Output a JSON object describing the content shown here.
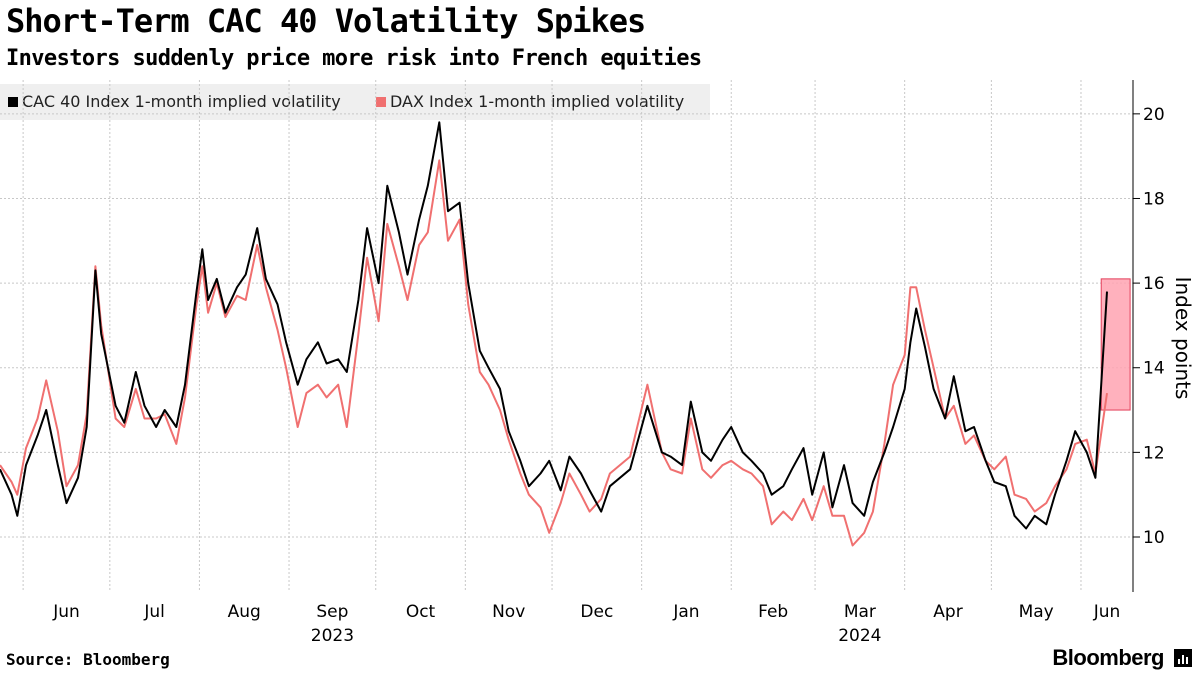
{
  "header": {
    "title": "Short-Term CAC 40 Volatility Spikes",
    "subtitle": "Investors suddenly price more risk into French equities"
  },
  "footer": {
    "source": "Source: Bloomberg",
    "brand": "Bloomberg"
  },
  "colors": {
    "cac": "#000000",
    "dax": "#f07070",
    "highlight": "#ffa3b1",
    "highlight_border": "#e43f5a",
    "grid": "#c8c8c8",
    "legend_bg": "#efefef"
  },
  "chart_data": {
    "type": "line",
    "title": "Short-Term CAC 40 Volatility Spikes",
    "subtitle": "Investors suddenly price more risk into French equities",
    "ylabel": "Index points",
    "ylim": [
      8.7,
      20.8
    ],
    "yticks": [
      10,
      12,
      14,
      16,
      18,
      20
    ],
    "xlim": [
      "2023-05-24",
      "2024-06-19"
    ],
    "month_ticks": [
      {
        "label": "Jun",
        "date": "2023-06-01"
      },
      {
        "label": "Jul",
        "date": "2023-07-01"
      },
      {
        "label": "Aug",
        "date": "2023-08-01"
      },
      {
        "label": "Sep",
        "date": "2023-09-01"
      },
      {
        "label": "Oct",
        "date": "2023-10-01"
      },
      {
        "label": "Nov",
        "date": "2023-11-01"
      },
      {
        "label": "Dec",
        "date": "2023-12-01"
      },
      {
        "label": "Jan",
        "date": "2024-01-01"
      },
      {
        "label": "Feb",
        "date": "2024-02-01"
      },
      {
        "label": "Mar",
        "date": "2024-03-01"
      },
      {
        "label": "Apr",
        "date": "2024-04-01"
      },
      {
        "label": "May",
        "date": "2024-05-01"
      },
      {
        "label": "Jun",
        "date": "2024-06-01"
      }
    ],
    "year_labels": [
      {
        "label": "2023",
        "date": "2023-09-01"
      },
      {
        "label": "2024",
        "date": "2024-03-01"
      }
    ],
    "grid": true,
    "legend_position": "top-left",
    "highlight": {
      "x_start": "2024-06-08",
      "x_end": "2024-06-18",
      "y_start": 13.0,
      "y_end": 16.1
    },
    "series": [
      {
        "name": "CAC 40 Index 1-month implied volatility",
        "color": "#000000",
        "points": [
          [
            "2023-05-24",
            11.6
          ],
          [
            "2023-05-28",
            11.0
          ],
          [
            "2023-05-30",
            10.5
          ],
          [
            "2023-06-02",
            11.7
          ],
          [
            "2023-06-06",
            12.4
          ],
          [
            "2023-06-09",
            13.0
          ],
          [
            "2023-06-13",
            11.7
          ],
          [
            "2023-06-16",
            10.8
          ],
          [
            "2023-06-20",
            11.4
          ],
          [
            "2023-06-23",
            12.6
          ],
          [
            "2023-06-26",
            16.3
          ],
          [
            "2023-06-28",
            14.8
          ],
          [
            "2023-07-03",
            13.1
          ],
          [
            "2023-07-06",
            12.7
          ],
          [
            "2023-07-10",
            13.9
          ],
          [
            "2023-07-13",
            13.1
          ],
          [
            "2023-07-17",
            12.6
          ],
          [
            "2023-07-20",
            13.0
          ],
          [
            "2023-07-24",
            12.6
          ],
          [
            "2023-07-27",
            13.6
          ],
          [
            "2023-07-31",
            15.8
          ],
          [
            "2023-08-02",
            16.8
          ],
          [
            "2023-08-04",
            15.6
          ],
          [
            "2023-08-07",
            16.1
          ],
          [
            "2023-08-10",
            15.3
          ],
          [
            "2023-08-14",
            15.9
          ],
          [
            "2023-08-17",
            16.2
          ],
          [
            "2023-08-21",
            17.3
          ],
          [
            "2023-08-24",
            16.1
          ],
          [
            "2023-08-28",
            15.5
          ],
          [
            "2023-08-31",
            14.6
          ],
          [
            "2023-09-04",
            13.6
          ],
          [
            "2023-09-07",
            14.2
          ],
          [
            "2023-09-11",
            14.6
          ],
          [
            "2023-09-14",
            14.1
          ],
          [
            "2023-09-18",
            14.2
          ],
          [
            "2023-09-21",
            13.9
          ],
          [
            "2023-09-25",
            15.6
          ],
          [
            "2023-09-28",
            17.3
          ],
          [
            "2023-10-02",
            16.0
          ],
          [
            "2023-10-05",
            18.3
          ],
          [
            "2023-10-09",
            17.2
          ],
          [
            "2023-10-12",
            16.2
          ],
          [
            "2023-10-16",
            17.5
          ],
          [
            "2023-10-19",
            18.3
          ],
          [
            "2023-10-23",
            19.8
          ],
          [
            "2023-10-26",
            17.7
          ],
          [
            "2023-10-30",
            17.9
          ],
          [
            "2023-11-02",
            16.0
          ],
          [
            "2023-11-06",
            14.4
          ],
          [
            "2023-11-09",
            14.0
          ],
          [
            "2023-11-13",
            13.5
          ],
          [
            "2023-11-16",
            12.5
          ],
          [
            "2023-11-20",
            11.8
          ],
          [
            "2023-11-23",
            11.2
          ],
          [
            "2023-11-27",
            11.5
          ],
          [
            "2023-11-30",
            11.8
          ],
          [
            "2023-12-04",
            11.1
          ],
          [
            "2023-12-07",
            11.9
          ],
          [
            "2023-12-11",
            11.5
          ],
          [
            "2023-12-14",
            11.1
          ],
          [
            "2023-12-18",
            10.6
          ],
          [
            "2023-12-21",
            11.2
          ],
          [
            "2023-12-28",
            11.6
          ],
          [
            "2024-01-03",
            13.1
          ],
          [
            "2024-01-08",
            12.0
          ],
          [
            "2024-01-11",
            11.9
          ],
          [
            "2024-01-15",
            11.7
          ],
          [
            "2024-01-18",
            13.2
          ],
          [
            "2024-01-22",
            12.0
          ],
          [
            "2024-01-25",
            11.8
          ],
          [
            "2024-01-29",
            12.3
          ],
          [
            "2024-02-01",
            12.6
          ],
          [
            "2024-02-05",
            12.0
          ],
          [
            "2024-02-08",
            11.8
          ],
          [
            "2024-02-12",
            11.5
          ],
          [
            "2024-02-15",
            11.0
          ],
          [
            "2024-02-19",
            11.2
          ],
          [
            "2024-02-22",
            11.6
          ],
          [
            "2024-02-26",
            12.1
          ],
          [
            "2024-02-29",
            11.0
          ],
          [
            "2024-03-04",
            12.0
          ],
          [
            "2024-03-07",
            10.7
          ],
          [
            "2024-03-11",
            11.7
          ],
          [
            "2024-03-14",
            10.8
          ],
          [
            "2024-03-18",
            10.5
          ],
          [
            "2024-03-21",
            11.3
          ],
          [
            "2024-03-25",
            12.0
          ],
          [
            "2024-03-28",
            12.6
          ],
          [
            "2024-04-01",
            13.5
          ],
          [
            "2024-04-03",
            14.6
          ],
          [
            "2024-04-05",
            15.4
          ],
          [
            "2024-04-08",
            14.5
          ],
          [
            "2024-04-11",
            13.5
          ],
          [
            "2024-04-15",
            12.8
          ],
          [
            "2024-04-18",
            13.8
          ],
          [
            "2024-04-22",
            12.5
          ],
          [
            "2024-04-25",
            12.6
          ],
          [
            "2024-04-29",
            11.8
          ],
          [
            "2024-05-02",
            11.3
          ],
          [
            "2024-05-06",
            11.2
          ],
          [
            "2024-05-09",
            10.5
          ],
          [
            "2024-05-13",
            10.2
          ],
          [
            "2024-05-16",
            10.5
          ],
          [
            "2024-05-20",
            10.3
          ],
          [
            "2024-05-23",
            11.0
          ],
          [
            "2024-05-27",
            11.8
          ],
          [
            "2024-05-30",
            12.5
          ],
          [
            "2024-06-03",
            12.0
          ],
          [
            "2024-06-06",
            11.4
          ],
          [
            "2024-06-10",
            15.8
          ]
        ]
      },
      {
        "name": "DAX Index 1-month implied volatility",
        "color": "#f07070",
        "points": [
          [
            "2023-05-24",
            11.7
          ],
          [
            "2023-05-28",
            11.3
          ],
          [
            "2023-05-30",
            11.0
          ],
          [
            "2023-06-02",
            12.1
          ],
          [
            "2023-06-06",
            12.8
          ],
          [
            "2023-06-09",
            13.7
          ],
          [
            "2023-06-13",
            12.5
          ],
          [
            "2023-06-16",
            11.2
          ],
          [
            "2023-06-20",
            11.7
          ],
          [
            "2023-06-23",
            12.9
          ],
          [
            "2023-06-26",
            16.4
          ],
          [
            "2023-06-28",
            15.0
          ],
          [
            "2023-07-03",
            12.8
          ],
          [
            "2023-07-06",
            12.6
          ],
          [
            "2023-07-10",
            13.5
          ],
          [
            "2023-07-13",
            12.8
          ],
          [
            "2023-07-17",
            12.8
          ],
          [
            "2023-07-20",
            12.9
          ],
          [
            "2023-07-24",
            12.2
          ],
          [
            "2023-07-27",
            13.3
          ],
          [
            "2023-07-31",
            15.5
          ],
          [
            "2023-08-02",
            16.4
          ],
          [
            "2023-08-04",
            15.3
          ],
          [
            "2023-08-07",
            16.0
          ],
          [
            "2023-08-10",
            15.2
          ],
          [
            "2023-08-14",
            15.7
          ],
          [
            "2023-08-17",
            15.6
          ],
          [
            "2023-08-21",
            16.9
          ],
          [
            "2023-08-24",
            15.9
          ],
          [
            "2023-08-28",
            14.9
          ],
          [
            "2023-08-31",
            14.0
          ],
          [
            "2023-09-04",
            12.6
          ],
          [
            "2023-09-07",
            13.4
          ],
          [
            "2023-09-11",
            13.6
          ],
          [
            "2023-09-14",
            13.3
          ],
          [
            "2023-09-18",
            13.6
          ],
          [
            "2023-09-21",
            12.6
          ],
          [
            "2023-09-25",
            14.8
          ],
          [
            "2023-09-28",
            16.6
          ],
          [
            "2023-10-02",
            15.1
          ],
          [
            "2023-10-05",
            17.4
          ],
          [
            "2023-10-09",
            16.4
          ],
          [
            "2023-10-12",
            15.6
          ],
          [
            "2023-10-16",
            16.9
          ],
          [
            "2023-10-19",
            17.2
          ],
          [
            "2023-10-23",
            18.9
          ],
          [
            "2023-10-26",
            17.0
          ],
          [
            "2023-10-30",
            17.5
          ],
          [
            "2023-11-02",
            15.5
          ],
          [
            "2023-11-06",
            13.9
          ],
          [
            "2023-11-09",
            13.6
          ],
          [
            "2023-11-13",
            13.0
          ],
          [
            "2023-11-16",
            12.3
          ],
          [
            "2023-11-20",
            11.5
          ],
          [
            "2023-11-23",
            11.0
          ],
          [
            "2023-11-27",
            10.7
          ],
          [
            "2023-11-30",
            10.1
          ],
          [
            "2023-12-04",
            10.8
          ],
          [
            "2023-12-07",
            11.5
          ],
          [
            "2023-12-11",
            11.0
          ],
          [
            "2023-12-14",
            10.6
          ],
          [
            "2023-12-18",
            10.9
          ],
          [
            "2023-12-21",
            11.5
          ],
          [
            "2023-12-28",
            11.9
          ],
          [
            "2024-01-03",
            13.6
          ],
          [
            "2024-01-08",
            12.0
          ],
          [
            "2024-01-11",
            11.6
          ],
          [
            "2024-01-15",
            11.5
          ],
          [
            "2024-01-18",
            12.8
          ],
          [
            "2024-01-22",
            11.6
          ],
          [
            "2024-01-25",
            11.4
          ],
          [
            "2024-01-29",
            11.7
          ],
          [
            "2024-02-01",
            11.8
          ],
          [
            "2024-02-05",
            11.6
          ],
          [
            "2024-02-08",
            11.5
          ],
          [
            "2024-02-12",
            11.2
          ],
          [
            "2024-02-15",
            10.3
          ],
          [
            "2024-02-19",
            10.6
          ],
          [
            "2024-02-22",
            10.4
          ],
          [
            "2024-02-26",
            10.9
          ],
          [
            "2024-02-29",
            10.4
          ],
          [
            "2024-03-04",
            11.2
          ],
          [
            "2024-03-07",
            10.5
          ],
          [
            "2024-03-11",
            10.5
          ],
          [
            "2024-03-14",
            9.8
          ],
          [
            "2024-03-18",
            10.1
          ],
          [
            "2024-03-21",
            10.6
          ],
          [
            "2024-03-25",
            12.2
          ],
          [
            "2024-03-28",
            13.6
          ],
          [
            "2024-04-01",
            14.3
          ],
          [
            "2024-04-03",
            15.9
          ],
          [
            "2024-04-05",
            15.9
          ],
          [
            "2024-04-08",
            14.9
          ],
          [
            "2024-04-11",
            14.0
          ],
          [
            "2024-04-15",
            12.8
          ],
          [
            "2024-04-18",
            13.1
          ],
          [
            "2024-04-22",
            12.2
          ],
          [
            "2024-04-25",
            12.4
          ],
          [
            "2024-04-29",
            11.8
          ],
          [
            "2024-05-02",
            11.6
          ],
          [
            "2024-05-06",
            11.9
          ],
          [
            "2024-05-09",
            11.0
          ],
          [
            "2024-05-13",
            10.9
          ],
          [
            "2024-05-16",
            10.6
          ],
          [
            "2024-05-20",
            10.8
          ],
          [
            "2024-05-23",
            11.2
          ],
          [
            "2024-05-27",
            11.6
          ],
          [
            "2024-05-30",
            12.2
          ],
          [
            "2024-06-03",
            12.3
          ],
          [
            "2024-06-06",
            11.5
          ],
          [
            "2024-06-10",
            13.4
          ]
        ]
      }
    ]
  }
}
